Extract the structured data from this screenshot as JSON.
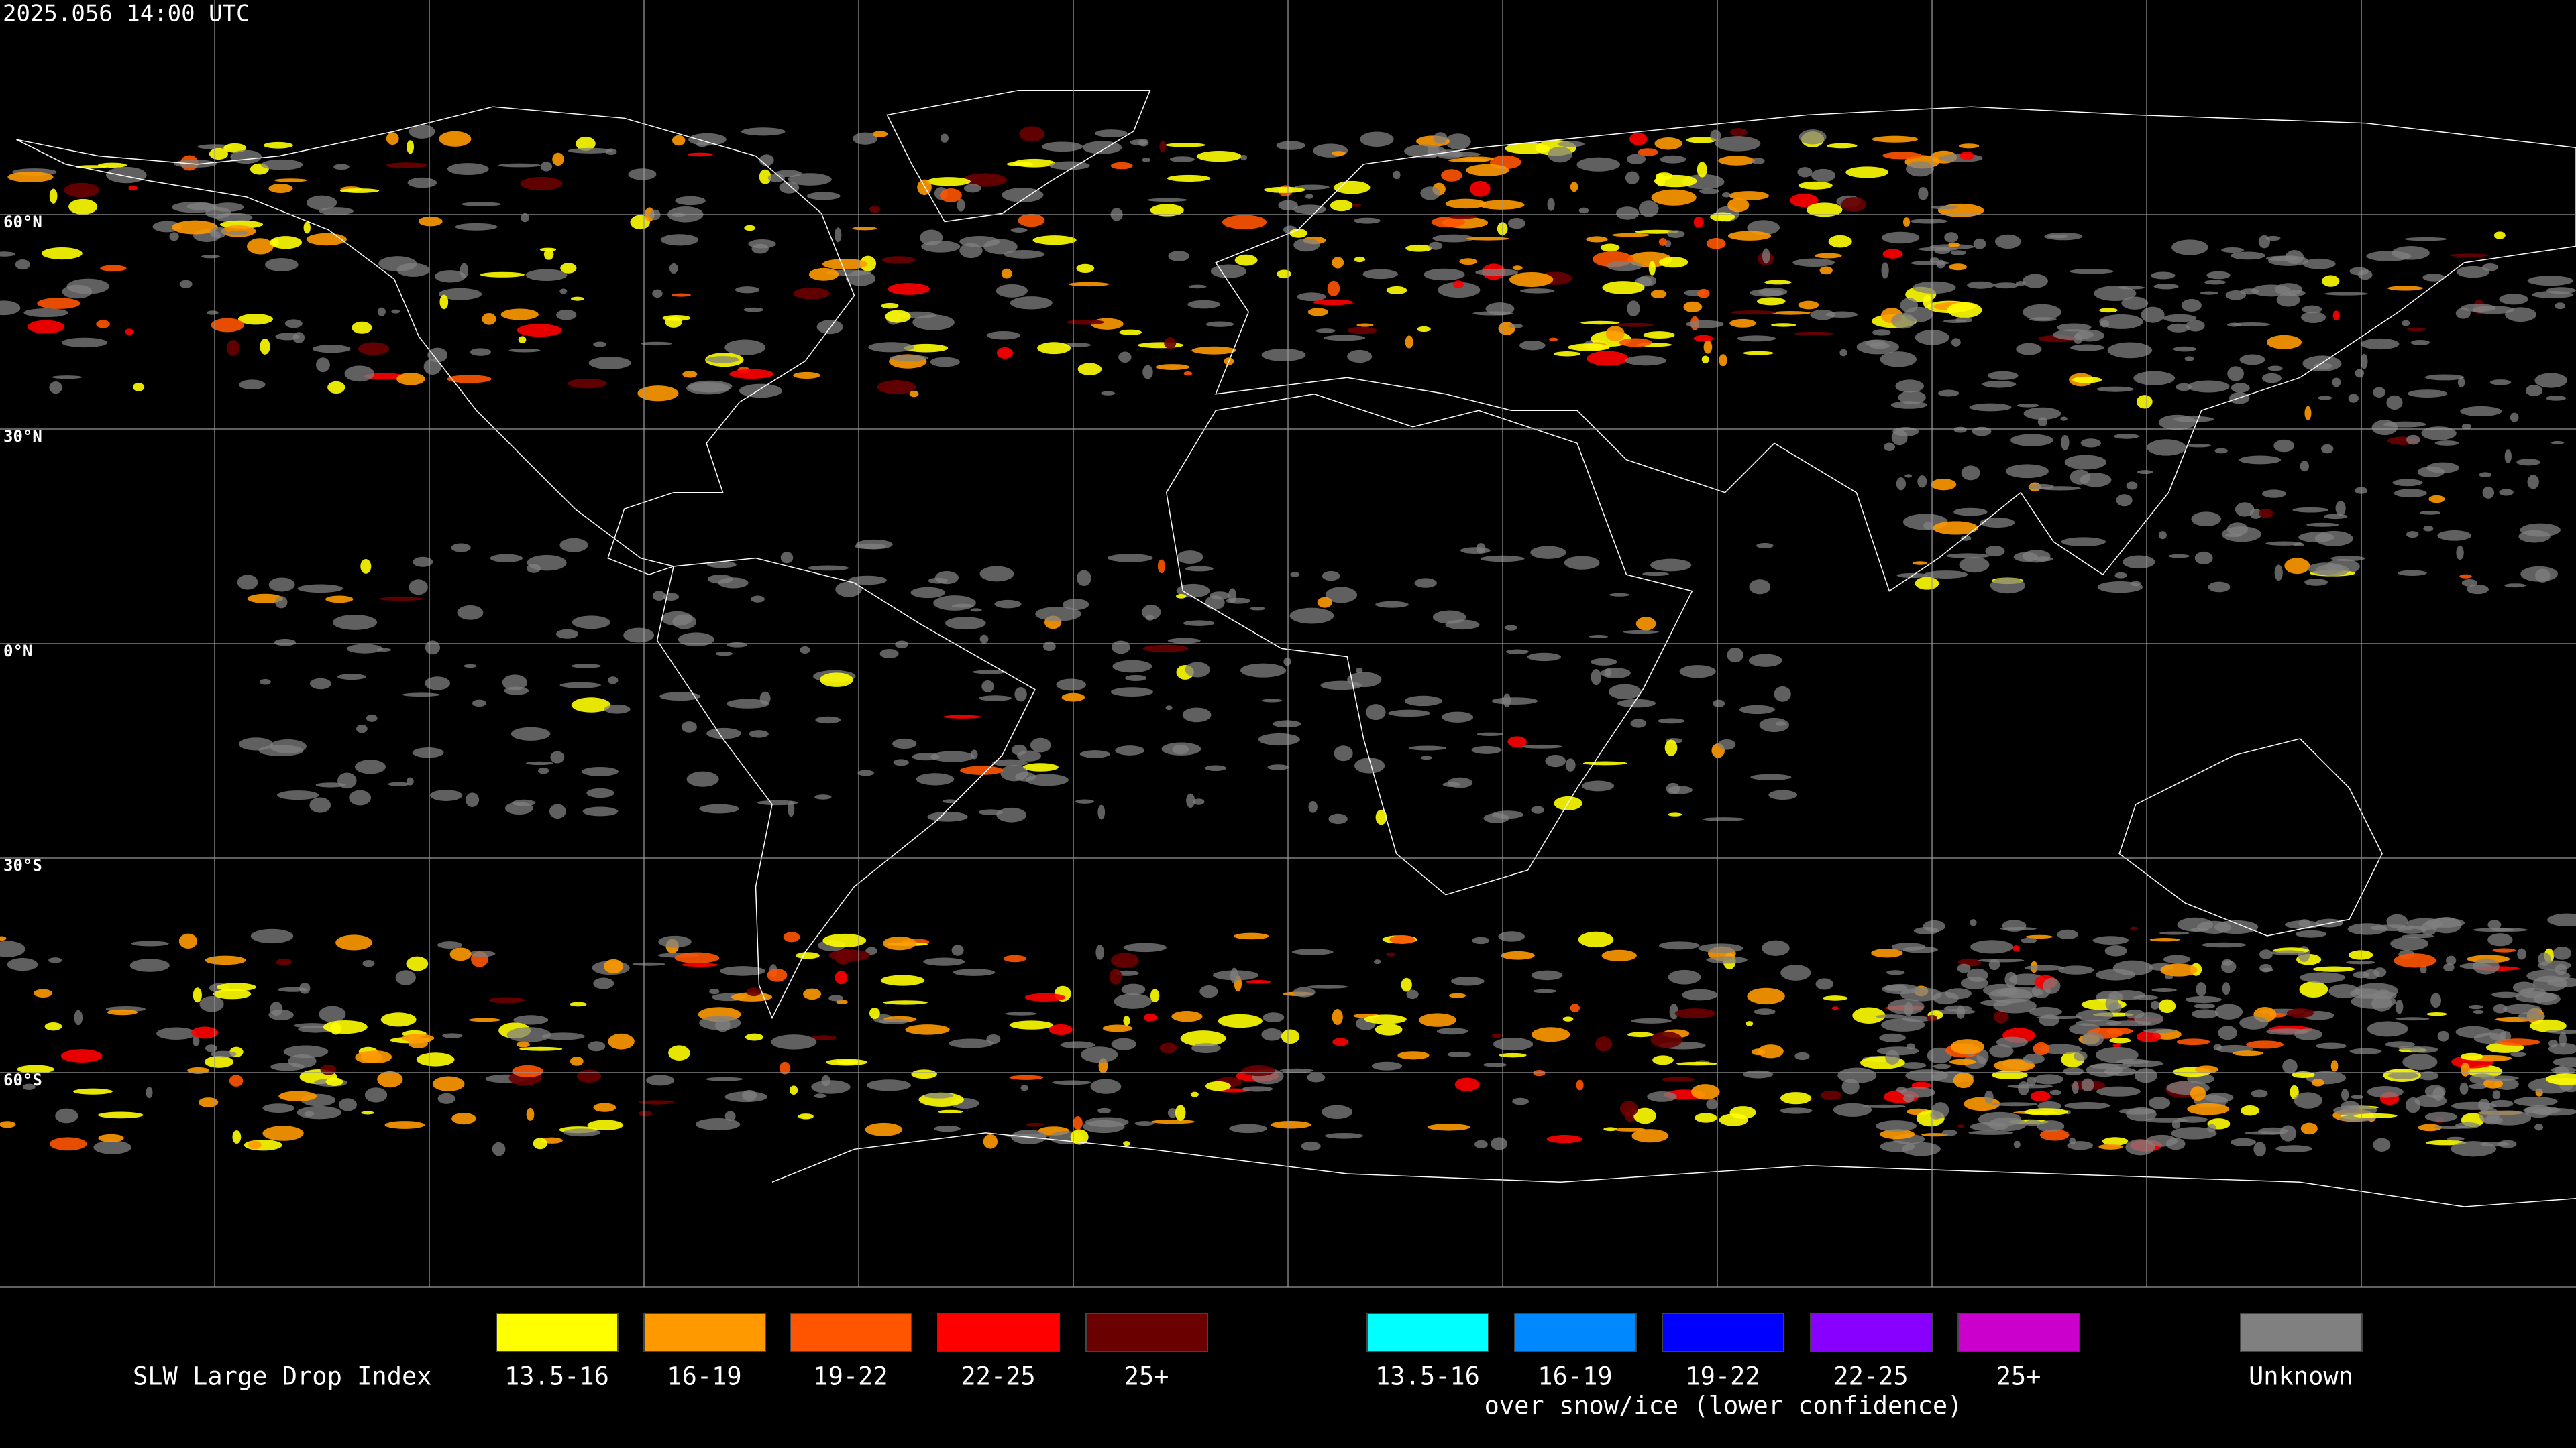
{
  "header": {
    "timestamp": "2025.056 14:00 UTC"
  },
  "map": {
    "latitude_labels": [
      "60°N",
      "30°N",
      "0°N",
      "30°S",
      "60°S"
    ]
  },
  "legend": {
    "title": "SLW Large Drop Index",
    "items": [
      {
        "label": "13.5-16",
        "color": "#ffff00"
      },
      {
        "label": "16-19",
        "color": "#ff9900"
      },
      {
        "label": "19-22",
        "color": "#ff5500"
      },
      {
        "label": "22-25",
        "color": "#ff0000"
      },
      {
        "label": "25+",
        "color": "#6b0000"
      }
    ],
    "snow_items": [
      {
        "label": "13.5-16",
        "color": "#00ffff"
      },
      {
        "label": "16-19",
        "color": "#0088ff"
      },
      {
        "label": "19-22",
        "color": "#0000ff"
      },
      {
        "label": "22-25",
        "color": "#8800ff"
      },
      {
        "label": "25+",
        "color": "#cc00cc"
      }
    ],
    "snow_note": "over snow/ice (lower confidence)",
    "unknown": {
      "label": "Unknown",
      "color": "#808080"
    }
  }
}
